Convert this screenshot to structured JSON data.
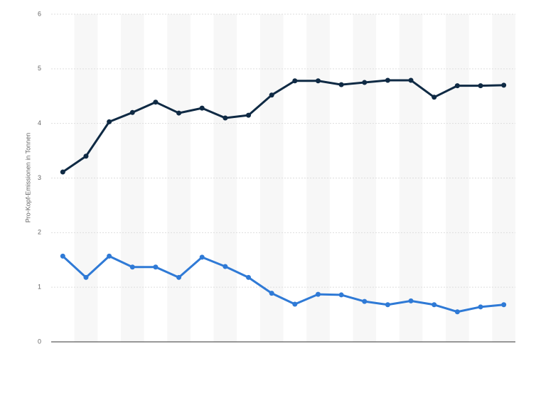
{
  "chart_data": {
    "type": "line",
    "y_label": "Pro-Kopf-Emissionen in Tonnen",
    "categories": [
      null,
      null,
      null,
      null,
      null,
      null,
      null,
      null,
      null,
      null,
      null,
      null,
      null,
      null,
      null,
      null,
      null,
      null,
      null,
      null
    ],
    "series": [
      {
        "color": "#0f2a44",
        "values": [
          3.11,
          3.4,
          4.03,
          4.2,
          4.39,
          4.19,
          4.28,
          4.1,
          4.15,
          4.52,
          4.78,
          4.78,
          4.71,
          4.75,
          4.79,
          4.79,
          4.48,
          4.69,
          4.69,
          4.7
        ]
      },
      {
        "color": "#2f7ad6",
        "values": [
          1.57,
          1.18,
          1.57,
          1.37,
          1.37,
          1.18,
          1.55,
          1.38,
          1.18,
          0.89,
          0.69,
          0.87,
          0.86,
          0.74,
          0.68,
          0.75,
          0.68,
          0.55,
          0.64,
          0.68
        ]
      }
    ],
    "ylim": [
      0,
      6
    ],
    "yticks": [
      0,
      1,
      2,
      3,
      4,
      5,
      6
    ],
    "grid": true,
    "stripes": true
  }
}
